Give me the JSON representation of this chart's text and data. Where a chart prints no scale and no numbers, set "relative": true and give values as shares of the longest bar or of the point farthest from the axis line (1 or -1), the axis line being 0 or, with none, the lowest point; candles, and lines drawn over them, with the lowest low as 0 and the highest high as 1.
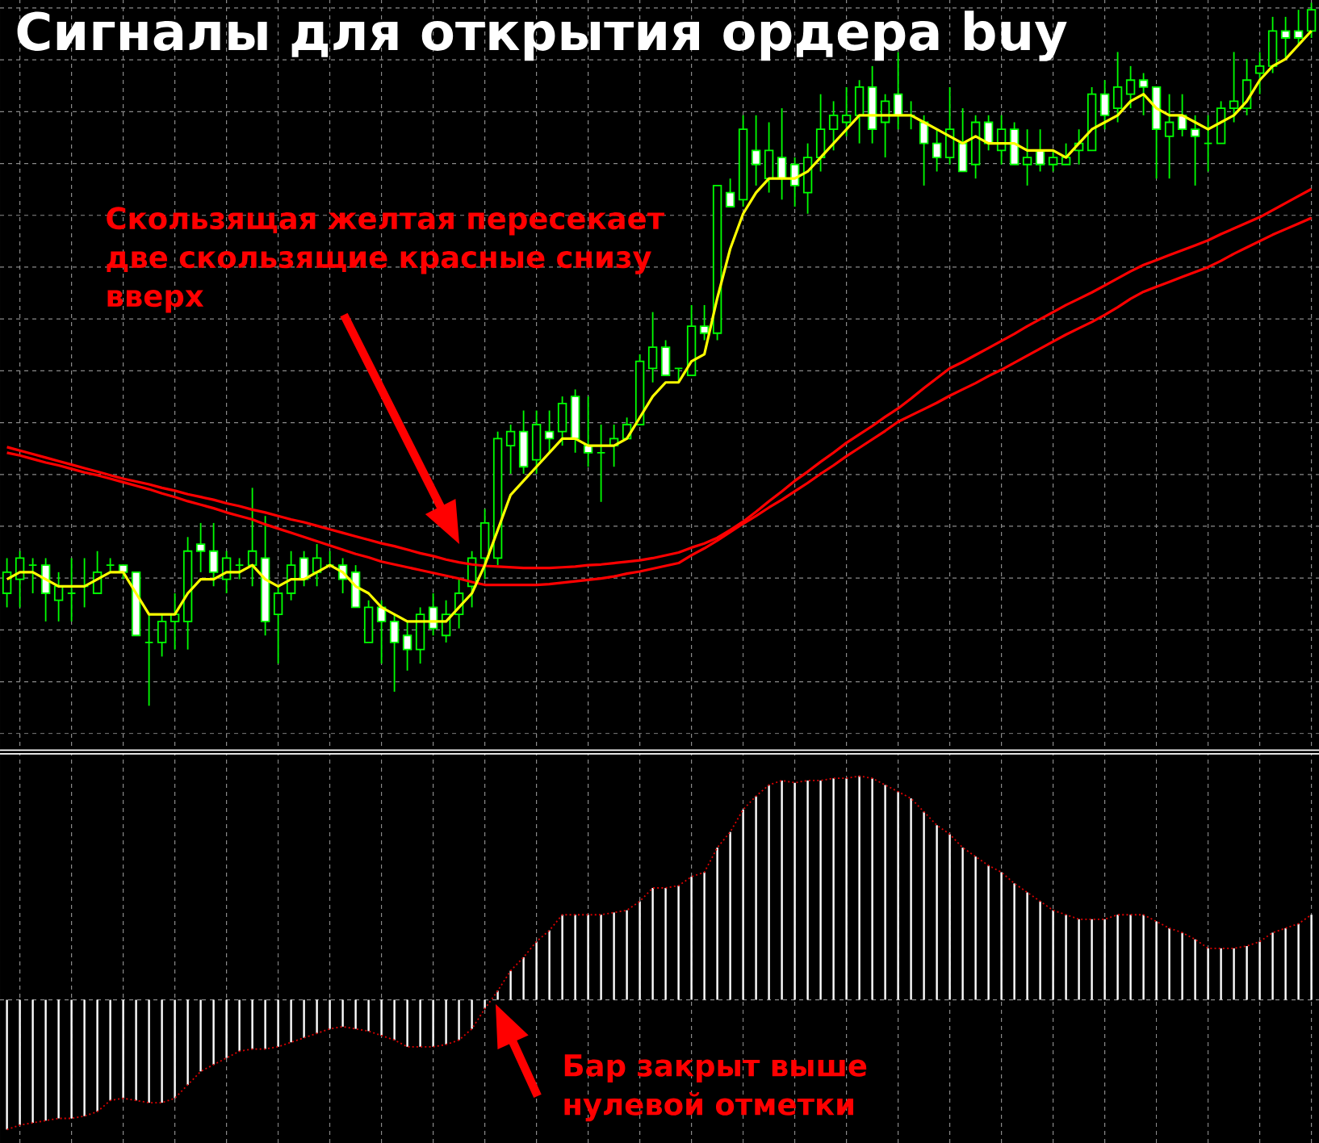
{
  "chart_data": [
    {
      "type": "candlestick",
      "title": "Сигналы для открытия ордера buy",
      "annotations": [
        "Скользящая желтая пересекает две скользящие красные снизу вверх"
      ],
      "relative": true,
      "grid": true,
      "color": "#00ff00",
      "categories": [
        null,
        null,
        null,
        null,
        null,
        null,
        null,
        null,
        null,
        null,
        null,
        null,
        null,
        null,
        null,
        null,
        null,
        null,
        null,
        null,
        null,
        null,
        null,
        null,
        null,
        null,
        null,
        null,
        null,
        null,
        null,
        null,
        null,
        null,
        null,
        null,
        null,
        null,
        null,
        null,
        null,
        null,
        null,
        null,
        null,
        null,
        null,
        null,
        null,
        null,
        null,
        null,
        null,
        null,
        null,
        null,
        null,
        null,
        null,
        null,
        null,
        null,
        null,
        null,
        null,
        null,
        null,
        null,
        null,
        null,
        null,
        null,
        null,
        null,
        null,
        null,
        null,
        null,
        null,
        null,
        null,
        null,
        null,
        null,
        null,
        null,
        null,
        null,
        null,
        null,
        null,
        null,
        null,
        null,
        null,
        null,
        null,
        null,
        null,
        null,
        null,
        null
      ],
      "ohlc": [
        [
          0.16,
          0.21,
          0.14,
          0.19
        ],
        [
          0.18,
          0.22,
          0.14,
          0.21
        ],
        [
          0.2,
          0.21,
          0.16,
          0.2
        ],
        [
          0.2,
          0.21,
          0.12,
          0.16
        ],
        [
          0.15,
          0.19,
          0.12,
          0.17
        ],
        [
          0.16,
          0.21,
          0.12,
          0.16
        ],
        [
          0.17,
          0.21,
          0.14,
          0.17
        ],
        [
          0.16,
          0.22,
          0.16,
          0.19
        ],
        [
          0.2,
          0.21,
          0.19,
          0.2
        ],
        [
          0.2,
          0.2,
          0.18,
          0.19
        ],
        [
          0.19,
          0.19,
          0.1,
          0.1
        ],
        [
          0.09,
          0.13,
          0,
          0.09
        ],
        [
          0.09,
          0.13,
          0.07,
          0.12
        ],
        [
          0.12,
          0.16,
          0.08,
          0.13
        ],
        [
          0.12,
          0.24,
          0.08,
          0.22
        ],
        [
          0.23,
          0.26,
          0.19,
          0.22
        ],
        [
          0.22,
          0.26,
          0.17,
          0.19
        ],
        [
          0.18,
          0.22,
          0.16,
          0.21
        ],
        [
          0.2,
          0.21,
          0.18,
          0.2
        ],
        [
          0.2,
          0.31,
          0.17,
          0.22
        ],
        [
          0.21,
          0.27,
          0.1,
          0.12
        ],
        [
          0.13,
          0.17,
          0.06,
          0.16
        ],
        [
          0.16,
          0.22,
          0.15,
          0.2
        ],
        [
          0.21,
          0.22,
          0.17,
          0.18
        ],
        [
          0.19,
          0.23,
          0.17,
          0.21
        ],
        [
          0.2,
          0.22,
          0.2,
          0.2
        ],
        [
          0.2,
          0.21,
          0.16,
          0.18
        ],
        [
          0.19,
          0.2,
          0.14,
          0.14
        ],
        [
          0.09,
          0.15,
          0.09,
          0.14
        ],
        [
          0.14,
          0.15,
          0.06,
          0.12
        ],
        [
          0.12,
          0.13,
          0.02,
          0.09
        ],
        [
          0.1,
          0.12,
          0.05,
          0.08
        ],
        [
          0.08,
          0.14,
          0.06,
          0.13
        ],
        [
          0.14,
          0.16,
          0.1,
          0.11
        ],
        [
          0.1,
          0.15,
          0.09,
          0.13
        ],
        [
          0.13,
          0.18,
          0.11,
          0.16
        ],
        [
          0.17,
          0.22,
          0.14,
          0.21
        ],
        [
          0.21,
          0.28,
          0.18,
          0.26
        ],
        [
          0.21,
          0.39,
          0.2,
          0.38
        ],
        [
          0.37,
          0.4,
          0.33,
          0.39
        ],
        [
          0.39,
          0.42,
          0.33,
          0.34
        ],
        [
          0.35,
          0.42,
          0.33,
          0.4
        ],
        [
          0.39,
          0.42,
          0.36,
          0.38
        ],
        [
          0.39,
          0.44,
          0.37,
          0.43
        ],
        [
          0.44,
          0.45,
          0.36,
          0.38
        ],
        [
          0.37,
          0.44,
          0.34,
          0.36
        ],
        [
          0.36,
          0.4,
          0.29,
          0.36
        ],
        [
          0.37,
          0.4,
          0.34,
          0.38
        ],
        [
          0.38,
          0.41,
          0.38,
          0.4
        ],
        [
          0.4,
          0.5,
          0.4,
          0.49
        ],
        [
          0.48,
          0.56,
          0.46,
          0.51
        ],
        [
          0.51,
          0.52,
          0.47,
          0.47
        ],
        [
          0.48,
          0.48,
          0.46,
          0.48
        ],
        [
          0.47,
          0.57,
          0.47,
          0.54
        ],
        [
          0.54,
          0.57,
          0.52,
          0.53
        ],
        [
          0.53,
          0.74,
          0.52,
          0.74
        ],
        [
          0.73,
          0.75,
          0.71,
          0.71
        ],
        [
          0.72,
          0.84,
          0.71,
          0.82
        ],
        [
          0.79,
          0.84,
          0.74,
          0.77
        ],
        [
          0.75,
          0.83,
          0.73,
          0.79
        ],
        [
          0.78,
          0.85,
          0.72,
          0.75
        ],
        [
          0.77,
          0.78,
          0.71,
          0.74
        ],
        [
          0.73,
          0.8,
          0.7,
          0.78
        ],
        [
          0.78,
          0.87,
          0.76,
          0.82
        ],
        [
          0.82,
          0.86,
          0.79,
          0.84
        ],
        [
          0.83,
          0.88,
          0.81,
          0.84
        ],
        [
          0.84,
          0.89,
          0.8,
          0.88
        ],
        [
          0.88,
          0.91,
          0.8,
          0.82
        ],
        [
          0.83,
          0.87,
          0.78,
          0.86
        ],
        [
          0.87,
          0.93,
          0.82,
          0.84
        ],
        [
          0.84,
          0.86,
          0.82,
          0.84
        ],
        [
          0.83,
          0.84,
          0.74,
          0.8
        ],
        [
          0.8,
          0.82,
          0.76,
          0.78
        ],
        [
          0.78,
          0.88,
          0.77,
          0.82
        ],
        [
          0.8,
          0.85,
          0.76,
          0.76
        ],
        [
          0.77,
          0.84,
          0.75,
          0.83
        ],
        [
          0.83,
          0.84,
          0.79,
          0.8
        ],
        [
          0.79,
          0.84,
          0.77,
          0.82
        ],
        [
          0.82,
          0.83,
          0.77,
          0.77
        ],
        [
          0.77,
          0.82,
          0.74,
          0.78
        ],
        [
          0.79,
          0.82,
          0.76,
          0.77
        ],
        [
          0.77,
          0.79,
          0.76,
          0.78
        ],
        [
          0.77,
          0.8,
          0.77,
          0.78
        ],
        [
          0.79,
          0.82,
          0.77,
          0.8
        ],
        [
          0.79,
          0.88,
          0.79,
          0.87
        ],
        [
          0.87,
          0.89,
          0.82,
          0.84
        ],
        [
          0.85,
          0.93,
          0.83,
          0.88
        ],
        [
          0.87,
          0.91,
          0.85,
          0.89
        ],
        [
          0.89,
          0.9,
          0.84,
          0.88
        ],
        [
          0.88,
          0.88,
          0.75,
          0.82
        ],
        [
          0.81,
          0.87,
          0.75,
          0.83
        ],
        [
          0.84,
          0.87,
          0.81,
          0.82
        ],
        [
          0.82,
          0.84,
          0.74,
          0.81
        ],
        [
          0.8,
          0.84,
          0.76,
          0.8
        ],
        [
          0.8,
          0.86,
          0.8,
          0.85
        ],
        [
          0.85,
          0.93,
          0.83,
          0.86
        ],
        [
          0.85,
          0.92,
          0.84,
          0.89
        ],
        [
          0.9,
          0.93,
          0.87,
          0.91
        ],
        [
          0.91,
          0.98,
          0.9,
          0.96
        ],
        [
          0.96,
          0.98,
          0.92,
          0.95
        ],
        [
          0.96,
          0.99,
          0.94,
          0.95
        ],
        [
          0.96,
          1,
          0.95,
          0.99
        ]
      ],
      "series": [
        {
          "type": "line",
          "color": "#ff0000",
          "values": [
            0.368,
            0.363,
            0.358,
            0.353,
            0.348,
            0.343,
            0.338,
            0.333,
            0.328,
            0.323,
            0.319,
            0.315,
            0.31,
            0.306,
            0.301,
            0.297,
            0.293,
            0.288,
            0.284,
            0.279,
            0.275,
            0.27,
            0.265,
            0.261,
            0.256,
            0.251,
            0.246,
            0.241,
            0.236,
            0.231,
            0.227,
            0.222,
            0.217,
            0.213,
            0.208,
            0.204,
            0.201,
            0.199,
            0.198,
            0.197,
            0.196,
            0.196,
            0.196,
            0.197,
            0.198,
            0.2,
            0.201,
            0.203,
            0.205,
            0.207,
            0.21,
            0.214,
            0.218,
            0.225,
            0.231,
            0.239,
            0.25,
            0.262,
            0.276,
            0.291,
            0.305,
            0.32,
            0.333,
            0.347,
            0.36,
            0.374,
            0.386,
            0.398,
            0.411,
            0.423,
            0.437,
            0.452,
            0.466,
            0.48,
            0.489,
            0.499,
            0.509,
            0.519,
            0.529,
            0.54,
            0.55,
            0.56,
            0.57,
            0.579,
            0.588,
            0.598,
            0.608,
            0.618,
            0.627,
            0.634,
            0.641,
            0.648,
            0.655,
            0.662,
            0.671,
            0.679,
            0.687,
            0.695,
            0.705,
            0.715,
            0.725,
            0.735
          ]
        },
        {
          "type": "line",
          "color": "#ff0000",
          "values": [
            0.36,
            0.356,
            0.351,
            0.346,
            0.342,
            0.337,
            0.332,
            0.328,
            0.323,
            0.318,
            0.313,
            0.308,
            0.302,
            0.297,
            0.291,
            0.286,
            0.281,
            0.275,
            0.27,
            0.265,
            0.258,
            0.252,
            0.246,
            0.24,
            0.234,
            0.228,
            0.222,
            0.216,
            0.211,
            0.205,
            0.201,
            0.197,
            0.193,
            0.189,
            0.185,
            0.181,
            0.176,
            0.172,
            0.172,
            0.172,
            0.172,
            0.172,
            0.173,
            0.175,
            0.177,
            0.179,
            0.181,
            0.184,
            0.188,
            0.191,
            0.195,
            0.199,
            0.203,
            0.214,
            0.224,
            0.235,
            0.247,
            0.259,
            0.27,
            0.282,
            0.293,
            0.305,
            0.317,
            0.33,
            0.342,
            0.355,
            0.367,
            0.379,
            0.391,
            0.404,
            0.413,
            0.422,
            0.431,
            0.441,
            0.45,
            0.459,
            0.469,
            0.478,
            0.488,
            0.498,
            0.508,
            0.518,
            0.528,
            0.537,
            0.546,
            0.556,
            0.567,
            0.579,
            0.589,
            0.596,
            0.603,
            0.61,
            0.617,
            0.624,
            0.633,
            0.643,
            0.652,
            0.661,
            0.67,
            0.678,
            0.686,
            0.694
          ]
        },
        {
          "type": "line",
          "color": "#ffff00",
          "values": [
            0.18,
            0.19,
            0.19,
            0.18,
            0.17,
            0.17,
            0.17,
            0.18,
            0.19,
            0.19,
            0.16,
            0.13,
            0.13,
            0.13,
            0.16,
            0.18,
            0.18,
            0.19,
            0.19,
            0.2,
            0.18,
            0.17,
            0.18,
            0.18,
            0.19,
            0.2,
            0.19,
            0.17,
            0.16,
            0.14,
            0.13,
            0.12,
            0.12,
            0.12,
            0.12,
            0.14,
            0.16,
            0.2,
            0.25,
            0.3,
            0.32,
            0.34,
            0.36,
            0.38,
            0.38,
            0.37,
            0.37,
            0.37,
            0.38,
            0.41,
            0.44,
            0.46,
            0.46,
            0.49,
            0.5,
            0.58,
            0.65,
            0.7,
            0.73,
            0.75,
            0.75,
            0.75,
            0.76,
            0.78,
            0.8,
            0.82,
            0.84,
            0.84,
            0.84,
            0.84,
            0.84,
            0.83,
            0.82,
            0.81,
            0.8,
            0.81,
            0.8,
            0.8,
            0.8,
            0.79,
            0.79,
            0.79,
            0.78,
            0.8,
            0.82,
            0.83,
            0.84,
            0.86,
            0.87,
            0.85,
            0.84,
            0.84,
            0.83,
            0.82,
            0.83,
            0.84,
            0.86,
            0.89,
            0.91,
            0.92,
            0.94,
            0.96
          ]
        }
      ]
    },
    {
      "type": "bar",
      "annotations": [
        "Бар закрыт выше нулевой отметки"
      ],
      "relative": true,
      "grid": "x",
      "categories": [
        null,
        null,
        null,
        null,
        null,
        null,
        null,
        null,
        null,
        null,
        null,
        null,
        null,
        null,
        null,
        null,
        null,
        null,
        null,
        null,
        null,
        null,
        null,
        null,
        null,
        null,
        null,
        null,
        null,
        null,
        null,
        null,
        null,
        null,
        null,
        null,
        null,
        null,
        null,
        null,
        null,
        null,
        null,
        null,
        null,
        null,
        null,
        null,
        null,
        null,
        null,
        null,
        null,
        null,
        null,
        null,
        null,
        null,
        null,
        null,
        null,
        null,
        null,
        null,
        null,
        null,
        null,
        null,
        null,
        null,
        null,
        null,
        null,
        null,
        null,
        null,
        null,
        null,
        null,
        null,
        null,
        null,
        null,
        null,
        null,
        null,
        null,
        null,
        null,
        null,
        null,
        null,
        null,
        null,
        null,
        null,
        null,
        null,
        null,
        null,
        null,
        null
      ],
      "series": [
        {
          "type": "bar",
          "color": "#ffffff",
          "values": [
            -0.58,
            -0.56,
            -0.55,
            -0.54,
            -0.53,
            -0.53,
            -0.52,
            -0.5,
            -0.45,
            -0.44,
            -0.45,
            -0.46,
            -0.46,
            -0.44,
            -0.38,
            -0.32,
            -0.29,
            -0.26,
            -0.23,
            -0.22,
            -0.22,
            -0.21,
            -0.19,
            -0.17,
            -0.15,
            -0.13,
            -0.12,
            -0.13,
            -0.14,
            -0.16,
            -0.18,
            -0.21,
            -0.21,
            -0.21,
            -0.2,
            -0.18,
            -0.13,
            -0.04,
            0.04,
            0.13,
            0.19,
            0.26,
            0.31,
            0.38,
            0.38,
            0.38,
            0.38,
            0.39,
            0.4,
            0.44,
            0.5,
            0.5,
            0.51,
            0.55,
            0.57,
            0.68,
            0.75,
            0.85,
            0.91,
            0.96,
            0.98,
            0.97,
            0.98,
            0.98,
            0.99,
            0.99,
            1,
            0.99,
            0.96,
            0.93,
            0.9,
            0.84,
            0.78,
            0.74,
            0.68,
            0.64,
            0.6,
            0.57,
            0.52,
            0.48,
            0.44,
            0.4,
            0.38,
            0.36,
            0.36,
            0.36,
            0.38,
            0.38,
            0.38,
            0.35,
            0.32,
            0.3,
            0.27,
            0.23,
            0.23,
            0.23,
            0.24,
            0.26,
            0.3,
            0.32,
            0.34,
            0.38
          ]
        },
        {
          "type": "line",
          "color": "#dd0000",
          "line_style": "dotted",
          "values": [
            -0.58,
            -0.56,
            -0.55,
            -0.54,
            -0.53,
            -0.53,
            -0.52,
            -0.5,
            -0.45,
            -0.44,
            -0.45,
            -0.46,
            -0.46,
            -0.44,
            -0.38,
            -0.32,
            -0.29,
            -0.26,
            -0.23,
            -0.22,
            -0.22,
            -0.21,
            -0.19,
            -0.17,
            -0.15,
            -0.13,
            -0.12,
            -0.13,
            -0.14,
            -0.16,
            -0.18,
            -0.21,
            -0.21,
            -0.21,
            -0.2,
            -0.18,
            -0.13,
            -0.04,
            0.04,
            0.13,
            0.19,
            0.26,
            0.31,
            0.38,
            0.38,
            0.38,
            0.38,
            0.39,
            0.4,
            0.44,
            0.5,
            0.5,
            0.51,
            0.55,
            0.57,
            0.68,
            0.75,
            0.85,
            0.91,
            0.96,
            0.98,
            0.97,
            0.98,
            0.98,
            0.99,
            0.99,
            1,
            0.99,
            0.96,
            0.93,
            0.9,
            0.84,
            0.78,
            0.74,
            0.68,
            0.64,
            0.6,
            0.57,
            0.52,
            0.48,
            0.44,
            0.4,
            0.38,
            0.36,
            0.36,
            0.36,
            0.38,
            0.38,
            0.38,
            0.35,
            0.32,
            0.3,
            0.27,
            0.23,
            0.23,
            0.23,
            0.24,
            0.26,
            0.3,
            0.32,
            0.34,
            0.38
          ]
        }
      ]
    }
  ]
}
